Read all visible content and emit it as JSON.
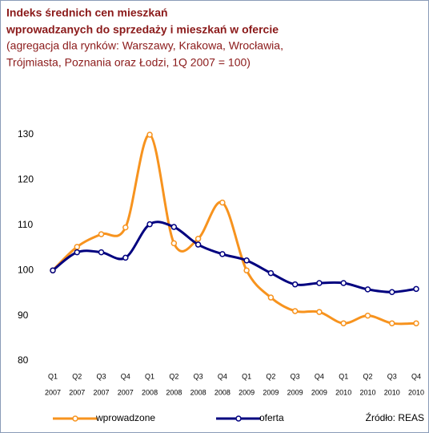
{
  "chart_data": {
    "type": "line",
    "title": [
      "Indeks średnich cen mieszkań",
      "wprowadzanych do sprzedaży i mieszkań w ofercie"
    ],
    "subtitle": [
      "(agregacja dla rynków: Warszawy, Krakowa, Wrocławia,",
      "Trójmiasta, Poznania oraz Łodzi, 1Q 2007 = 100)"
    ],
    "categories": [
      [
        "Q1",
        "2007"
      ],
      [
        "Q2",
        "2007"
      ],
      [
        "Q3",
        "2007"
      ],
      [
        "Q4",
        "2007"
      ],
      [
        "Q1",
        "2008"
      ],
      [
        "Q2",
        "2008"
      ],
      [
        "Q3",
        "2008"
      ],
      [
        "Q4",
        "2008"
      ],
      [
        "Q1",
        "2009"
      ],
      [
        "Q2",
        "2009"
      ],
      [
        "Q3",
        "2009"
      ],
      [
        "Q4",
        "2009"
      ],
      [
        "Q1",
        "2010"
      ],
      [
        "Q2",
        "2010"
      ],
      [
        "Q3",
        "2010"
      ],
      [
        "Q4",
        "2010"
      ]
    ],
    "series": [
      {
        "name": "wprowadzone",
        "color": "#f7931e",
        "values": [
          100,
          105.2,
          108,
          109.5,
          130,
          106,
          107,
          115,
          100,
          94,
          91,
          90.8,
          88.3,
          90,
          88.3,
          88.3
        ]
      },
      {
        "name": "oferta",
        "color": "#00007f",
        "values": [
          100,
          104,
          104,
          102.8,
          110.2,
          109.6,
          105.7,
          103.6,
          102.2,
          99.4,
          96.9,
          97.2,
          97.2,
          95.8,
          95.2,
          95.9
        ]
      }
    ],
    "ylim": [
      80,
      130
    ],
    "yticks": [
      80,
      90,
      100,
      110,
      120,
      130
    ],
    "grid": false,
    "source": "Źródło: REAS"
  }
}
